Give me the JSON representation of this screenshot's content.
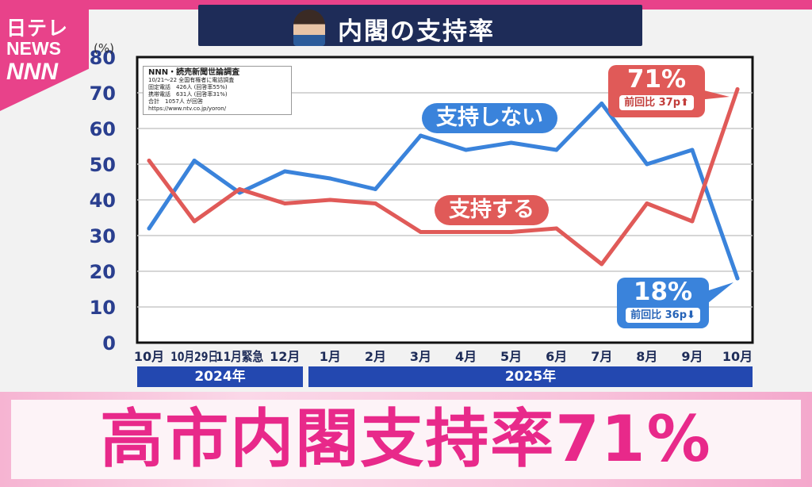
{
  "logo": {
    "line1": "日テレ",
    "line2": "NEWS",
    "line3": "NNN"
  },
  "header": {
    "title": "内閣の支持率"
  },
  "survey_box": {
    "title": "NNN・読売新聞世論調査",
    "line1": "10/21〜22 全国有権者に電話調査",
    "line2": "固定電話　426人 (回答率55%)",
    "line3": "携帯電話　631人 (回答率31%)",
    "line4": "合計　1057人 が回答",
    "url": "https://www.ntv.co.jp/yoron/"
  },
  "callouts": {
    "support": {
      "value": "71%",
      "change": "前回比 37p⬆"
    },
    "oppose": {
      "value": "18%",
      "change": "前回比 36p⬇"
    }
  },
  "year_labels": [
    "2024年",
    "2025年"
  ],
  "banner": {
    "headline": "高市内閣支持率71%"
  },
  "colors": {
    "support": "#e05a58",
    "oppose": "#3a83db",
    "axis_text": "#2a3f8f",
    "banner_text": "#e8298a"
  },
  "chart_data": {
    "type": "line",
    "title": "内閣の支持率",
    "ylabel": "(%)",
    "ylim": [
      0,
      80
    ],
    "yticks": [
      0,
      10,
      20,
      30,
      40,
      50,
      60,
      70,
      80
    ],
    "categories": [
      "10月",
      "10月29日",
      "11月緊急",
      "12月",
      "1月",
      "2月",
      "3月",
      "4月",
      "5月",
      "6月",
      "7月",
      "8月",
      "9月",
      "10月"
    ],
    "series": [
      {
        "name": "支持しない",
        "color": "#3a83db",
        "values": [
          32,
          51,
          42,
          48,
          46,
          43,
          58,
          54,
          56,
          54,
          67,
          50,
          54,
          18
        ]
      },
      {
        "name": "支持する",
        "color": "#e05a58",
        "values": [
          51,
          34,
          43,
          39,
          40,
          39,
          31,
          31,
          31,
          32,
          22,
          39,
          34,
          71
        ]
      }
    ],
    "grid": true
  }
}
